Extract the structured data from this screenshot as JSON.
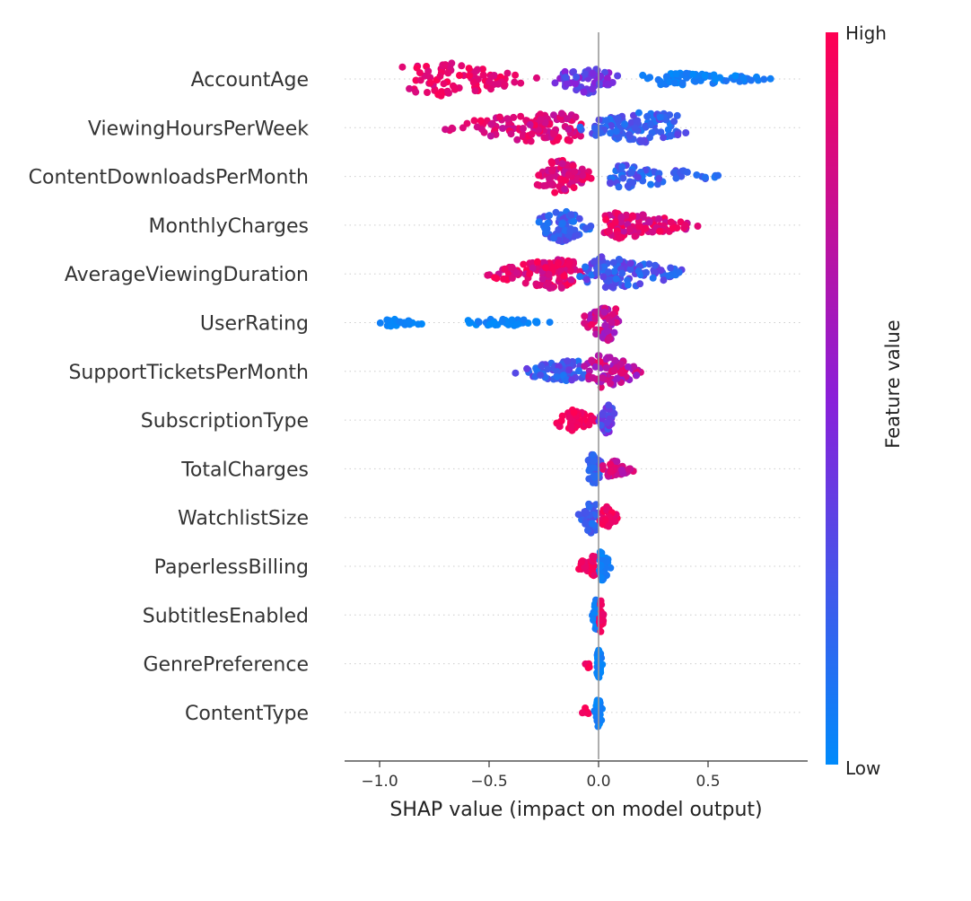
{
  "chart_data": {
    "type": "scatter",
    "subtype": "shap-beeswarm",
    "title": "",
    "xlabel": "SHAP value (impact on model output)",
    "ylabel": "",
    "xlim": [
      -1.18,
      0.95
    ],
    "x_ticks": [
      -1.0,
      -0.5,
      0.0,
      0.5
    ],
    "x_tick_labels": [
      "−1.0",
      "−0.5",
      "0.0",
      "0.5"
    ],
    "grid": false,
    "reference_line_x": 0.0,
    "colorbar": {
      "label": "Feature value",
      "high_label": "High",
      "low_label": "Low",
      "high_color": "#ff0052",
      "low_color": "#008bfb"
    },
    "features": [
      {
        "name": "AccountAge",
        "groups": [
          {
            "from": -0.92,
            "to": -0.27,
            "mode": -0.72,
            "n": 90,
            "h": 0.92,
            "c1": 0.82,
            "c2": 1.0
          },
          {
            "from": -0.22,
            "to": 0.12,
            "mode": -0.05,
            "n": 70,
            "h": 0.78,
            "c1": 0.25,
            "c2": 0.55
          },
          {
            "from": 0.18,
            "to": 0.84,
            "mode": 0.35,
            "n": 75,
            "h": 0.33,
            "c1": 0.0,
            "c2": 0.12
          }
        ]
      },
      {
        "name": "ViewingHoursPerWeek",
        "groups": [
          {
            "from": -0.72,
            "to": -0.05,
            "mode": -0.25,
            "n": 120,
            "h": 0.85,
            "c1": 0.72,
            "c2": 0.98
          },
          {
            "from": -0.15,
            "to": 0.45,
            "mode": 0.25,
            "n": 120,
            "h": 0.88,
            "c1": 0.08,
            "c2": 0.35
          }
        ]
      },
      {
        "name": "ContentDownloadsPerMonth",
        "groups": [
          {
            "from": -0.31,
            "to": -0.02,
            "mode": -0.18,
            "n": 75,
            "h": 0.92,
            "c1": 0.72,
            "c2": 0.98
          },
          {
            "from": 0.0,
            "to": 0.58,
            "mode": 0.1,
            "n": 65,
            "h": 0.6,
            "c1": 0.08,
            "c2": 0.35
          }
        ]
      },
      {
        "name": "MonthlyCharges",
        "groups": [
          {
            "from": -0.28,
            "to": -0.02,
            "mode": -0.17,
            "n": 75,
            "h": 0.88,
            "c1": 0.08,
            "c2": 0.32
          },
          {
            "from": 0.0,
            "to": 0.5,
            "mode": 0.1,
            "n": 100,
            "h": 0.68,
            "c1": 0.7,
            "c2": 1.0
          }
        ]
      },
      {
        "name": "AverageViewingDuration",
        "groups": [
          {
            "from": -0.53,
            "to": -0.05,
            "mode": -0.2,
            "n": 120,
            "h": 0.8,
            "c1": 0.75,
            "c2": 1.0
          },
          {
            "from": -0.1,
            "to": 0.44,
            "mode": 0.02,
            "n": 110,
            "h": 0.88,
            "c1": 0.1,
            "c2": 0.4
          }
        ]
      },
      {
        "name": "UserRating",
        "groups": [
          {
            "from": -1.06,
            "to": -0.74,
            "mode": -0.95,
            "n": 24,
            "h": 0.18,
            "c1": 0.0,
            "c2": 0.06
          },
          {
            "from": -0.64,
            "to": -0.2,
            "mode": -0.45,
            "n": 45,
            "h": 0.22,
            "c1": 0.0,
            "c2": 0.08
          },
          {
            "from": -0.1,
            "to": 0.1,
            "mode": 0.04,
            "n": 60,
            "h": 0.92,
            "c1": 0.55,
            "c2": 0.95
          }
        ]
      },
      {
        "name": "SupportTicketsPerMonth",
        "groups": [
          {
            "from": -0.4,
            "to": -0.05,
            "mode": -0.12,
            "n": 70,
            "h": 0.6,
            "c1": 0.08,
            "c2": 0.4
          },
          {
            "from": -0.08,
            "to": 0.22,
            "mode": 0.02,
            "n": 80,
            "h": 0.88,
            "c1": 0.5,
            "c2": 0.95
          }
        ]
      },
      {
        "name": "SubscriptionType",
        "groups": [
          {
            "from": -0.2,
            "to": 0.0,
            "mode": -0.12,
            "n": 55,
            "h": 0.55,
            "c1": 0.88,
            "c2": 1.0
          },
          {
            "from": 0.0,
            "to": 0.08,
            "mode": 0.05,
            "n": 35,
            "h": 0.9,
            "c1": 0.2,
            "c2": 0.5
          }
        ]
      },
      {
        "name": "TotalCharges",
        "groups": [
          {
            "from": -0.07,
            "to": 0.02,
            "mode": -0.02,
            "n": 45,
            "h": 0.88,
            "c1": 0.1,
            "c2": 0.3
          },
          {
            "from": 0.0,
            "to": 0.17,
            "mode": 0.06,
            "n": 45,
            "h": 0.5,
            "c1": 0.65,
            "c2": 0.95
          }
        ]
      },
      {
        "name": "WatchlistSize",
        "groups": [
          {
            "from": -0.1,
            "to": 0.0,
            "mode": -0.03,
            "n": 45,
            "h": 0.88,
            "c1": 0.1,
            "c2": 0.3
          },
          {
            "from": 0.0,
            "to": 0.09,
            "mode": 0.04,
            "n": 35,
            "h": 0.6,
            "c1": 0.85,
            "c2": 1.0
          }
        ]
      },
      {
        "name": "PaperlessBilling",
        "groups": [
          {
            "from": -0.11,
            "to": 0.0,
            "mode": -0.02,
            "n": 40,
            "h": 0.55,
            "c1": 0.88,
            "c2": 1.0
          },
          {
            "from": -0.01,
            "to": 0.06,
            "mode": 0.01,
            "n": 35,
            "h": 0.85,
            "c1": 0.0,
            "c2": 0.1
          }
        ]
      },
      {
        "name": "SubtitlesEnabled",
        "groups": [
          {
            "from": -0.03,
            "to": 0.0,
            "mode": -0.01,
            "n": 25,
            "h": 0.85,
            "c1": 0.0,
            "c2": 0.1
          },
          {
            "from": 0.0,
            "to": 0.03,
            "mode": 0.01,
            "n": 25,
            "h": 0.85,
            "c1": 0.9,
            "c2": 1.0
          }
        ]
      },
      {
        "name": "GenrePreference",
        "groups": [
          {
            "from": -0.08,
            "to": -0.03,
            "mode": -0.05,
            "n": 6,
            "h": 0.25,
            "c1": 0.9,
            "c2": 1.0
          },
          {
            "from": -0.01,
            "to": 0.02,
            "mode": 0.0,
            "n": 28,
            "h": 0.9,
            "c1": 0.0,
            "c2": 0.1
          }
        ]
      },
      {
        "name": "ContentType",
        "groups": [
          {
            "from": -0.08,
            "to": -0.04,
            "mode": -0.06,
            "n": 5,
            "h": 0.25,
            "c1": 0.9,
            "c2": 1.0
          },
          {
            "from": -0.02,
            "to": 0.02,
            "mode": 0.0,
            "n": 28,
            "h": 0.9,
            "c1": 0.0,
            "c2": 0.1
          }
        ]
      }
    ]
  }
}
